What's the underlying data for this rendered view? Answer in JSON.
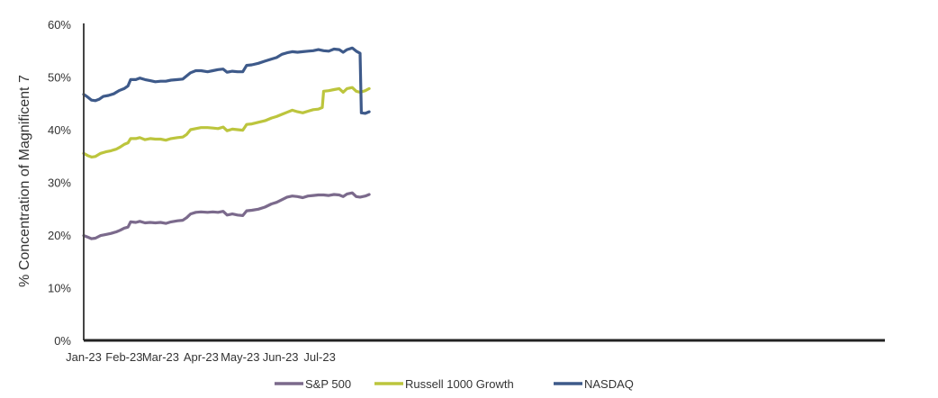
{
  "chart_data": {
    "type": "line",
    "title": "",
    "xlabel": "",
    "ylabel": "% Concentration of Magnificent 7",
    "ylim": [
      0,
      60
    ],
    "xlim": [
      "2023-01-01",
      "2023-08-01"
    ],
    "grid": false,
    "legend_position": "bottom",
    "y_ticks": [
      "0%",
      "10%",
      "20%",
      "30%",
      "40%",
      "50%",
      "60%"
    ],
    "x_ticks": [
      {
        "date": "2023-01-01",
        "label": "Jan-23"
      },
      {
        "date": "2023-02-01",
        "label": "Feb-23"
      },
      {
        "date": "2023-03-01",
        "label": "Mar-23"
      },
      {
        "date": "2023-04-01",
        "label": "Apr-23"
      },
      {
        "date": "2023-05-01",
        "label": "May-23"
      },
      {
        "date": "2023-06-01",
        "label": "Jun-23"
      },
      {
        "date": "2023-07-01",
        "label": "Jul-23"
      }
    ],
    "series": [
      {
        "name": "S&P 500",
        "color": "#7b6a8c",
        "points": [
          [
            "2023-01-01",
            19.9
          ],
          [
            "2023-01-04",
            19.6
          ],
          [
            "2023-01-07",
            19.3
          ],
          [
            "2023-01-10",
            19.4
          ],
          [
            "2023-01-14",
            19.9
          ],
          [
            "2023-01-18",
            20.1
          ],
          [
            "2023-01-22",
            20.3
          ],
          [
            "2023-01-26",
            20.6
          ],
          [
            "2023-01-29",
            20.9
          ],
          [
            "2023-02-01",
            21.3
          ],
          [
            "2023-02-04",
            21.5
          ],
          [
            "2023-02-06",
            22.5
          ],
          [
            "2023-02-10",
            22.4
          ],
          [
            "2023-02-13",
            22.6
          ],
          [
            "2023-02-17",
            22.3
          ],
          [
            "2023-02-21",
            22.4
          ],
          [
            "2023-02-25",
            22.3
          ],
          [
            "2023-03-01",
            22.4
          ],
          [
            "2023-03-05",
            22.2
          ],
          [
            "2023-03-09",
            22.5
          ],
          [
            "2023-03-14",
            22.7
          ],
          [
            "2023-03-18",
            22.8
          ],
          [
            "2023-03-21",
            23.3
          ],
          [
            "2023-03-24",
            24.0
          ],
          [
            "2023-03-28",
            24.3
          ],
          [
            "2023-04-01",
            24.4
          ],
          [
            "2023-04-06",
            24.3
          ],
          [
            "2023-04-10",
            24.4
          ],
          [
            "2023-04-14",
            24.3
          ],
          [
            "2023-04-18",
            24.5
          ],
          [
            "2023-04-21",
            23.8
          ],
          [
            "2023-04-25",
            24.0
          ],
          [
            "2023-04-29",
            23.8
          ],
          [
            "2023-05-03",
            23.7
          ],
          [
            "2023-05-06",
            24.6
          ],
          [
            "2023-05-10",
            24.7
          ],
          [
            "2023-05-15",
            24.9
          ],
          [
            "2023-05-20",
            25.3
          ],
          [
            "2023-05-25",
            25.9
          ],
          [
            "2023-05-29",
            26.2
          ],
          [
            "2023-06-02",
            26.7
          ],
          [
            "2023-06-06",
            27.2
          ],
          [
            "2023-06-10",
            27.4
          ],
          [
            "2023-06-14",
            27.3
          ],
          [
            "2023-06-18",
            27.1
          ],
          [
            "2023-06-22",
            27.4
          ],
          [
            "2023-06-26",
            27.5
          ],
          [
            "2023-06-30",
            27.6
          ],
          [
            "2023-07-04",
            27.6
          ],
          [
            "2023-07-08",
            27.5
          ],
          [
            "2023-07-12",
            27.7
          ],
          [
            "2023-07-16",
            27.6
          ],
          [
            "2023-07-19",
            27.3
          ],
          [
            "2023-07-22",
            27.8
          ],
          [
            "2023-07-26",
            28.0
          ],
          [
            "2023-07-29",
            27.3
          ],
          [
            "2023-08-01",
            27.2
          ],
          [
            "2023-08-05",
            27.4
          ],
          [
            "2023-08-08",
            27.7
          ]
        ]
      },
      {
        "name": "Russell 1000 Growth",
        "color": "#bcc53d",
        "points": [
          [
            "2023-01-01",
            35.5
          ],
          [
            "2023-01-04",
            35.1
          ],
          [
            "2023-01-07",
            34.8
          ],
          [
            "2023-01-10",
            34.9
          ],
          [
            "2023-01-14",
            35.5
          ],
          [
            "2023-01-18",
            35.8
          ],
          [
            "2023-01-22",
            36.0
          ],
          [
            "2023-01-26",
            36.3
          ],
          [
            "2023-01-29",
            36.7
          ],
          [
            "2023-02-01",
            37.2
          ],
          [
            "2023-02-04",
            37.5
          ],
          [
            "2023-02-06",
            38.3
          ],
          [
            "2023-02-10",
            38.3
          ],
          [
            "2023-02-13",
            38.5
          ],
          [
            "2023-02-17",
            38.1
          ],
          [
            "2023-02-21",
            38.3
          ],
          [
            "2023-02-25",
            38.2
          ],
          [
            "2023-03-01",
            38.2
          ],
          [
            "2023-03-05",
            38.0
          ],
          [
            "2023-03-09",
            38.3
          ],
          [
            "2023-03-14",
            38.5
          ],
          [
            "2023-03-18",
            38.6
          ],
          [
            "2023-03-21",
            39.1
          ],
          [
            "2023-03-24",
            40.0
          ],
          [
            "2023-03-28",
            40.2
          ],
          [
            "2023-04-01",
            40.4
          ],
          [
            "2023-04-06",
            40.4
          ],
          [
            "2023-04-10",
            40.3
          ],
          [
            "2023-04-14",
            40.2
          ],
          [
            "2023-04-18",
            40.5
          ],
          [
            "2023-04-21",
            39.8
          ],
          [
            "2023-04-25",
            40.1
          ],
          [
            "2023-04-29",
            40.0
          ],
          [
            "2023-05-03",
            39.9
          ],
          [
            "2023-05-06",
            41.0
          ],
          [
            "2023-05-10",
            41.1
          ],
          [
            "2023-05-15",
            41.4
          ],
          [
            "2023-05-20",
            41.7
          ],
          [
            "2023-05-25",
            42.2
          ],
          [
            "2023-05-29",
            42.5
          ],
          [
            "2023-06-02",
            42.9
          ],
          [
            "2023-06-06",
            43.3
          ],
          [
            "2023-06-10",
            43.7
          ],
          [
            "2023-06-14",
            43.4
          ],
          [
            "2023-06-18",
            43.2
          ],
          [
            "2023-06-22",
            43.5
          ],
          [
            "2023-06-26",
            43.8
          ],
          [
            "2023-06-30",
            43.9
          ],
          [
            "2023-07-03",
            44.2
          ],
          [
            "2023-07-04",
            47.3
          ],
          [
            "2023-07-08",
            47.4
          ],
          [
            "2023-07-12",
            47.6
          ],
          [
            "2023-07-16",
            47.8
          ],
          [
            "2023-07-19",
            47.1
          ],
          [
            "2023-07-22",
            47.8
          ],
          [
            "2023-07-26",
            48.0
          ],
          [
            "2023-07-29",
            47.3
          ],
          [
            "2023-08-01",
            47.1
          ],
          [
            "2023-08-05",
            47.4
          ],
          [
            "2023-08-08",
            47.8
          ]
        ]
      },
      {
        "name": "NASDAQ",
        "color": "#3e5a8a",
        "points": [
          [
            "2023-01-01",
            46.7
          ],
          [
            "2023-01-04",
            46.2
          ],
          [
            "2023-01-07",
            45.6
          ],
          [
            "2023-01-10",
            45.5
          ],
          [
            "2023-01-13",
            45.8
          ],
          [
            "2023-01-16",
            46.3
          ],
          [
            "2023-01-20",
            46.5
          ],
          [
            "2023-01-24",
            46.8
          ],
          [
            "2023-01-28",
            47.4
          ],
          [
            "2023-02-01",
            47.8
          ],
          [
            "2023-02-04",
            48.3
          ],
          [
            "2023-02-06",
            49.5
          ],
          [
            "2023-02-10",
            49.5
          ],
          [
            "2023-02-13",
            49.8
          ],
          [
            "2023-02-17",
            49.5
          ],
          [
            "2023-02-21",
            49.3
          ],
          [
            "2023-02-25",
            49.1
          ],
          [
            "2023-03-01",
            49.2
          ],
          [
            "2023-03-05",
            49.2
          ],
          [
            "2023-03-09",
            49.4
          ],
          [
            "2023-03-14",
            49.5
          ],
          [
            "2023-03-18",
            49.6
          ],
          [
            "2023-03-21",
            50.2
          ],
          [
            "2023-03-24",
            50.8
          ],
          [
            "2023-03-28",
            51.2
          ],
          [
            "2023-04-01",
            51.2
          ],
          [
            "2023-04-06",
            51.0
          ],
          [
            "2023-04-10",
            51.2
          ],
          [
            "2023-04-14",
            51.4
          ],
          [
            "2023-04-18",
            51.5
          ],
          [
            "2023-04-21",
            50.9
          ],
          [
            "2023-04-25",
            51.1
          ],
          [
            "2023-04-29",
            51.0
          ],
          [
            "2023-05-03",
            51.0
          ],
          [
            "2023-05-06",
            52.2
          ],
          [
            "2023-05-10",
            52.3
          ],
          [
            "2023-05-15",
            52.6
          ],
          [
            "2023-05-20",
            53.0
          ],
          [
            "2023-05-25",
            53.4
          ],
          [
            "2023-05-29",
            53.7
          ],
          [
            "2023-06-02",
            54.3
          ],
          [
            "2023-06-06",
            54.6
          ],
          [
            "2023-06-10",
            54.8
          ],
          [
            "2023-06-14",
            54.7
          ],
          [
            "2023-06-18",
            54.8
          ],
          [
            "2023-06-22",
            54.9
          ],
          [
            "2023-06-26",
            55.0
          ],
          [
            "2023-06-30",
            55.2
          ],
          [
            "2023-07-04",
            55.0
          ],
          [
            "2023-07-08",
            54.9
          ],
          [
            "2023-07-12",
            55.3
          ],
          [
            "2023-07-16",
            55.2
          ],
          [
            "2023-07-19",
            54.7
          ],
          [
            "2023-07-22",
            55.2
          ],
          [
            "2023-07-26",
            55.5
          ],
          [
            "2023-07-29",
            54.9
          ],
          [
            "2023-08-01",
            54.5
          ],
          [
            "2023-08-02",
            43.2
          ],
          [
            "2023-08-05",
            43.1
          ],
          [
            "2023-08-08",
            43.4
          ]
        ]
      }
    ]
  }
}
